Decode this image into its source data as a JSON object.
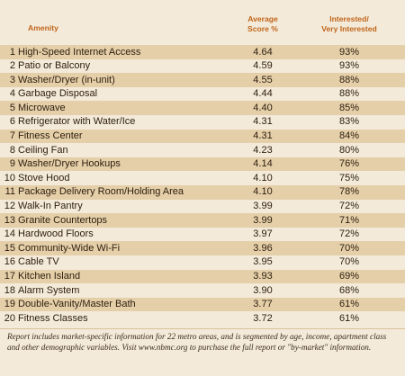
{
  "header": {
    "amenity": "Amenity",
    "score_line1": "Average",
    "score_line2": "Score %",
    "interest_line1": "Interested/",
    "interest_line2": "Very Interested"
  },
  "rows": [
    {
      "rank": "1",
      "name": "High-Speed Internet Access",
      "score": "4.64",
      "pct": "93%"
    },
    {
      "rank": "2",
      "name": "Patio or Balcony",
      "score": "4.59",
      "pct": "93%"
    },
    {
      "rank": "3",
      "name": "Washer/Dryer (in-unit)",
      "score": "4.55",
      "pct": "88%"
    },
    {
      "rank": "4",
      "name": "Garbage Disposal",
      "score": "4.44",
      "pct": "88%"
    },
    {
      "rank": "5",
      "name": "Microwave",
      "score": "4.40",
      "pct": "85%"
    },
    {
      "rank": "6",
      "name": "Refrigerator with Water/Ice",
      "score": "4.31",
      "pct": "83%"
    },
    {
      "rank": "7",
      "name": "Fitness Center",
      "score": "4.31",
      "pct": "84%"
    },
    {
      "rank": "8",
      "name": "Ceiling Fan",
      "score": "4.23",
      "pct": "80%"
    },
    {
      "rank": "9",
      "name": "Washer/Dryer Hookups",
      "score": "4.14",
      "pct": "76%"
    },
    {
      "rank": "10",
      "name": "Stove Hood",
      "score": "4.10",
      "pct": "75%"
    },
    {
      "rank": "11",
      "name": "Package Delivery Room/Holding Area",
      "score": "4.10",
      "pct": "78%"
    },
    {
      "rank": "12",
      "name": "Walk-In Pantry",
      "score": "3.99",
      "pct": "72%"
    },
    {
      "rank": "13",
      "name": "Granite Countertops",
      "score": "3.99",
      "pct": "71%"
    },
    {
      "rank": "14",
      "name": "Hardwood Floors",
      "score": "3.97",
      "pct": "72%"
    },
    {
      "rank": "15",
      "name": "Community-Wide Wi-Fi",
      "score": "3.96",
      "pct": "70%"
    },
    {
      "rank": "16",
      "name": "Cable TV",
      "score": "3.95",
      "pct": "70%"
    },
    {
      "rank": "17",
      "name": "Kitchen Island",
      "score": "3.93",
      "pct": "69%"
    },
    {
      "rank": "18",
      "name": "Alarm System",
      "score": "3.90",
      "pct": "68%"
    },
    {
      "rank": "19",
      "name": "Double-Vanity/Master Bath",
      "score": "3.77",
      "pct": "61%"
    },
    {
      "rank": "20",
      "name": "Fitness Classes",
      "score": "3.72",
      "pct": "61%"
    }
  ],
  "footnote": "Report includes market-specific information for 22 metro areas, and is segmented by age, income, apartment class and other demographic variables. Visit www.nbmc.org to purchase the full report or \"by-market\" information.",
  "colors": {
    "header_text": "#c0651b",
    "band": "#e4cfa9",
    "background": "#f3ead9"
  }
}
